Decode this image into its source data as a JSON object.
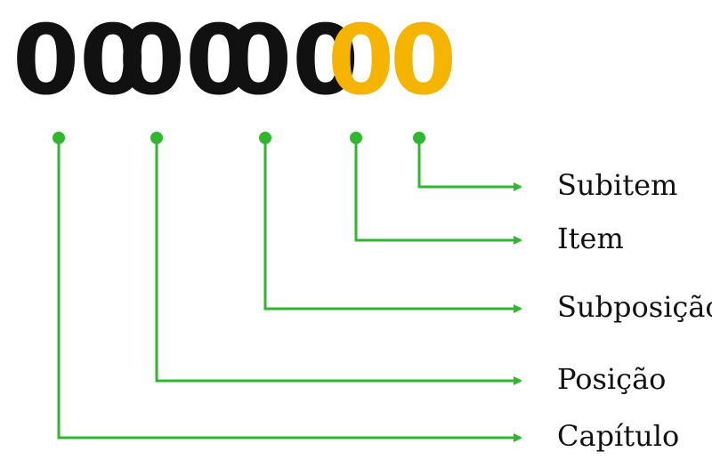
{
  "code_groups": [
    {
      "text": "00",
      "color": "#111111"
    },
    {
      "text": "00",
      "color": "#111111"
    },
    {
      "text": "00",
      "color": "#111111"
    },
    {
      "text": "0",
      "color": "#f4b400"
    },
    {
      "text": "0",
      "color": "#f4b400"
    }
  ],
  "labels": [
    "Subitem",
    "Item",
    "Subposição",
    "Posição",
    "Capítulo"
  ],
  "colors": {
    "connector": "#2db82d",
    "dark_digits": "#111111",
    "accent_digits": "#f4b400"
  }
}
